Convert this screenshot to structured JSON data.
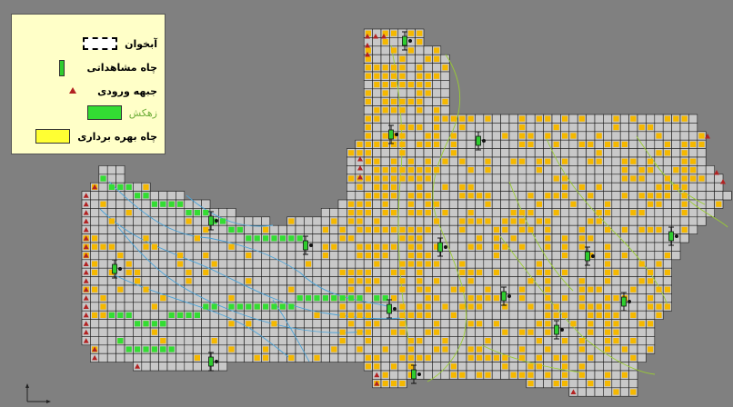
{
  "legend": {
    "items": [
      {
        "label": "آبخوان",
        "symbol": "general-head-boundary"
      },
      {
        "label": "چاه مشاهداتی",
        "symbol": "observation-well"
      },
      {
        "label": "جبهه ورودی",
        "symbol": "inflow-boundary"
      },
      {
        "label": "زهکش",
        "symbol": "drain"
      },
      {
        "label": "چاه بهره برداری",
        "symbol": "pumping-well"
      }
    ]
  },
  "colors": {
    "background": "#808080",
    "model_grid_fill": "#c8c8c8",
    "grid_line": "#1a1a1a",
    "pumping_well": "#f5b800",
    "drain": "#33dd33",
    "inflow_boundary": "#b22222",
    "contour_blue": "#4aa3d8",
    "contour_green": "#9acd32"
  }
}
